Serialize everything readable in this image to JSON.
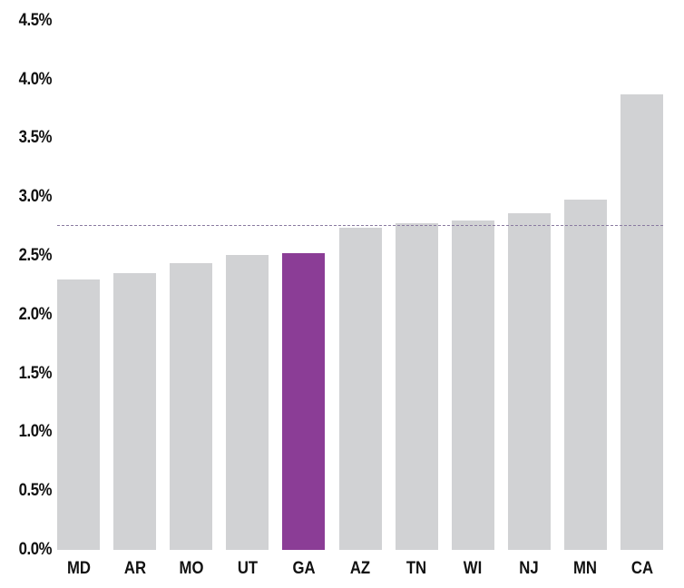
{
  "chart_data": {
    "type": "bar",
    "title": "",
    "xlabel": "",
    "ylabel": "",
    "ylim": [
      0,
      4.5
    ],
    "y_ticks": [
      "0.0%",
      "0.5%",
      "1.0%",
      "1.5%",
      "2.0%",
      "2.5%",
      "3.0%",
      "3.5%",
      "4.0%",
      "4.5%"
    ],
    "grid": false,
    "legend": null,
    "categories": [
      "MD",
      "AR",
      "MO",
      "UT",
      "GA",
      "AZ",
      "TN",
      "WI",
      "NJ",
      "MN",
      "CA"
    ],
    "values": [
      2.3,
      2.35,
      2.44,
      2.51,
      2.52,
      2.74,
      2.78,
      2.8,
      2.86,
      2.98,
      3.87
    ],
    "highlight": {
      "category": "GA",
      "color": "#8b3d96"
    },
    "bar_color": "#d1d2d4",
    "reference_line": {
      "value": 2.76,
      "style": "dashed",
      "color": "#8a7aa0"
    },
    "value_format": "percent"
  }
}
